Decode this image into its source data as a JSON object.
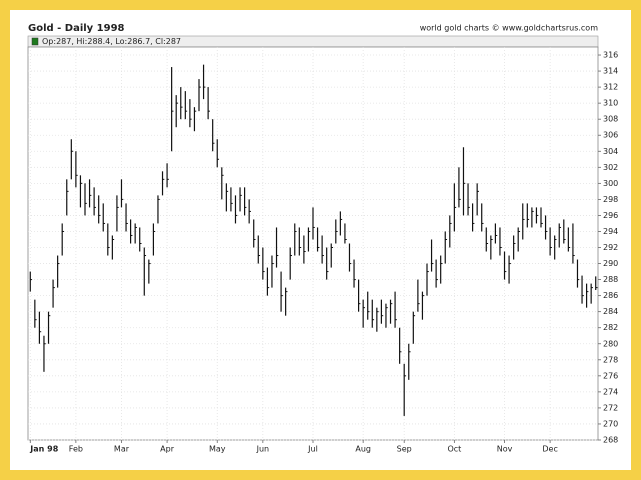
{
  "chart_data": {
    "type": "ohlc",
    "title": "Gold - Daily 1998",
    "source": "world gold charts © www.goldchartsrus.com",
    "legend": "Op:287, Hi:288.4, Lo:286.7, Cl:287",
    "legend_color": "#1f7a1f",
    "color": "#111111",
    "grid": true,
    "ylim": [
      268,
      317
    ],
    "yticks": [
      268,
      270,
      272,
      274,
      276,
      278,
      280,
      282,
      284,
      286,
      288,
      290,
      292,
      294,
      296,
      298,
      300,
      302,
      304,
      306,
      308,
      310,
      312,
      314,
      316
    ],
    "categories": [
      "Jan 98",
      null,
      null,
      null,
      null,
      null,
      null,
      null,
      null,
      null,
      "Feb",
      null,
      null,
      null,
      null,
      null,
      null,
      null,
      null,
      null,
      "Mar",
      null,
      null,
      null,
      null,
      null,
      null,
      null,
      null,
      null,
      "Apr",
      null,
      null,
      null,
      null,
      null,
      null,
      null,
      null,
      null,
      null,
      "May",
      null,
      null,
      null,
      null,
      null,
      null,
      null,
      null,
      null,
      "Jun",
      null,
      null,
      null,
      null,
      null,
      null,
      null,
      null,
      null,
      null,
      "Jul",
      null,
      null,
      null,
      null,
      null,
      null,
      null,
      null,
      null,
      null,
      "Aug",
      null,
      null,
      null,
      null,
      null,
      null,
      null,
      null,
      "Sep",
      null,
      null,
      null,
      null,
      null,
      null,
      null,
      null,
      null,
      null,
      "Oct",
      null,
      null,
      null,
      null,
      null,
      null,
      null,
      null,
      null,
      null,
      "Nov",
      null,
      null,
      null,
      null,
      null,
      null,
      null,
      null,
      null,
      "Dec",
      null,
      null,
      null,
      null,
      null,
      null,
      null,
      null,
      null,
      null
    ],
    "high": [
      289,
      285.5,
      284,
      281,
      284,
      288,
      291,
      295,
      300.5,
      305.5,
      304,
      301,
      300,
      300.5,
      299.5,
      298.5,
      297.5,
      295,
      293.5,
      298.5,
      300.5,
      297.5,
      295.5,
      295,
      294.5,
      292,
      290.5,
      295,
      298.5,
      301.5,
      302.5,
      314.5,
      311,
      312,
      311.5,
      310.5,
      309.5,
      313,
      314.8,
      312,
      308,
      305.5,
      302,
      300,
      299.5,
      298.5,
      299.5,
      299.5,
      298,
      295.5,
      293.5,
      292,
      289.5,
      291,
      294.5,
      289,
      287,
      292,
      295,
      294.5,
      293.5,
      294.5,
      297,
      294.5,
      293.5,
      292,
      292.5,
      295.5,
      296.5,
      295,
      292.5,
      290.5,
      288,
      285.5,
      286.5,
      285.5,
      284.5,
      285.5,
      285,
      285.5,
      286.5,
      282,
      277.5,
      280,
      284,
      288,
      286.5,
      290,
      293,
      290.5,
      291,
      294,
      296,
      300,
      302,
      304.5,
      300,
      297.5,
      300,
      297.5,
      294.5,
      293.5,
      295,
      294.5,
      291.5,
      291,
      293.5,
      294.5,
      297.5,
      297.5,
      297,
      297,
      297,
      296,
      294.5,
      293.5,
      295,
      295.5,
      294.5,
      295,
      290.5,
      288.5,
      287.5,
      287.5,
      288.4
    ],
    "low": [
      286.5,
      282,
      280,
      276.5,
      280,
      284.5,
      287,
      291,
      296,
      300.5,
      299.5,
      297,
      296,
      297,
      296,
      295,
      294,
      291,
      290.5,
      294,
      297,
      294,
      292.5,
      292.5,
      291.5,
      286,
      287.5,
      291,
      295,
      298.5,
      299.5,
      304,
      307,
      308,
      308,
      307,
      306.5,
      309,
      310.5,
      308,
      304,
      302,
      298,
      296.5,
      296.5,
      295,
      296.5,
      296,
      295,
      292,
      290,
      288,
      286,
      287,
      289.5,
      284,
      283.5,
      288,
      291,
      291,
      290,
      291.5,
      293,
      291.5,
      290,
      288,
      289.5,
      292.5,
      293.5,
      292.5,
      289,
      287,
      284,
      282,
      283,
      282,
      281.5,
      282.5,
      282,
      282.5,
      282,
      277.5,
      271,
      275.5,
      280,
      284,
      283,
      286,
      289,
      287,
      287.5,
      290,
      292,
      294,
      297,
      296,
      296,
      294,
      296,
      294,
      291.5,
      290.5,
      292.5,
      291,
      288,
      287.5,
      290.5,
      291.5,
      293,
      294.5,
      294.5,
      295,
      294.5,
      293,
      291,
      290.5,
      292,
      292.5,
      291.5,
      290,
      287,
      285,
      284.5,
      285,
      286.7
    ],
    "close": [
      288,
      283,
      281.5,
      280,
      283.5,
      287,
      290,
      294,
      299,
      304,
      301,
      300,
      297.5,
      298.5,
      297,
      296,
      295,
      292,
      293,
      297,
      298,
      295,
      293.5,
      294.5,
      292.5,
      291,
      290,
      294,
      298,
      300.5,
      300.5,
      309,
      310,
      309.5,
      309,
      308,
      309,
      312,
      312,
      309,
      305,
      303,
      301,
      299,
      297.5,
      296,
      298.5,
      297,
      296.5,
      293,
      291,
      289,
      287,
      290,
      291,
      286,
      286.5,
      291,
      294,
      292,
      291.5,
      294,
      294.5,
      292,
      291,
      289,
      292,
      294,
      295.5,
      293,
      290,
      288,
      285,
      284.5,
      284,
      283,
      284,
      283.5,
      284.5,
      285,
      283,
      279,
      276,
      279,
      283.5,
      285,
      286,
      289,
      290,
      288,
      290,
      293,
      295,
      297,
      298,
      300,
      297,
      295,
      299,
      295,
      292.5,
      293,
      293.5,
      292,
      289,
      290,
      292.5,
      294,
      295.5,
      295.5,
      296.5,
      296,
      295,
      294,
      292,
      293,
      294.5,
      293,
      292,
      291,
      288,
      286,
      286.5,
      287,
      287
    ]
  }
}
